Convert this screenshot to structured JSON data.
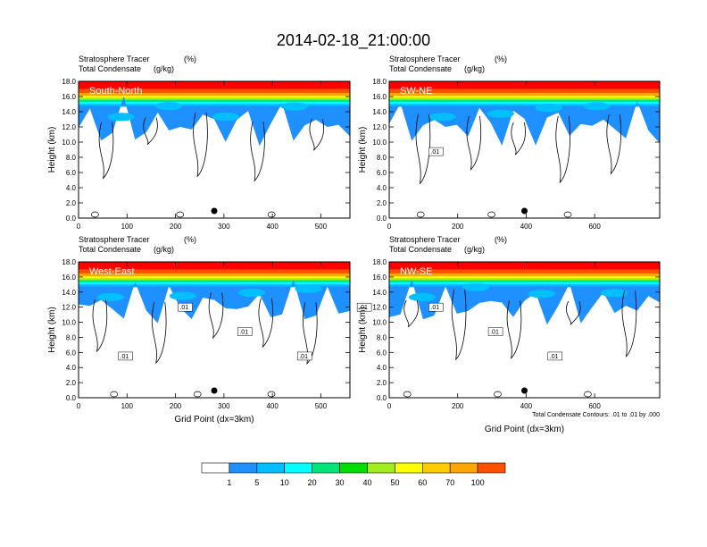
{
  "title": "2014-02-18_21:00:00",
  "chart_data": [
    {
      "type": "heatmap",
      "label_left_1": "Stratosphere Tracer",
      "label_right_1": "(%)",
      "label_left_2": "Total Condensate",
      "label_right_2": "(g/kg)",
      "section_label": "South-North",
      "ylabel": "Height (km)",
      "xlabel": "",
      "xlim": [
        0,
        560
      ],
      "ylim": [
        0,
        18
      ],
      "xticks": [
        "0",
        "100",
        "200",
        "300",
        "400",
        "500"
      ],
      "yticks": [
        "0.0",
        "2.0",
        "4.0",
        "6.0",
        "8.0",
        "10.0",
        "12.0",
        "14.0",
        "16.0",
        "18.0"
      ],
      "marker_x": 280,
      "contour_labels": []
    },
    {
      "type": "heatmap",
      "label_left_1": "Stratosphere Tracer",
      "label_right_1": "(%)",
      "label_left_2": "Total Condensate",
      "label_right_2": "(g/kg)",
      "section_label": "SW-NE",
      "ylabel": "Height (km)",
      "xlabel": "",
      "xlim": [
        0,
        790
      ],
      "ylim": [
        0,
        18
      ],
      "xticks": [
        "0",
        "200",
        "400",
        "600"
      ],
      "yticks": [
        "0.0",
        "2.0",
        "4.0",
        "6.0",
        "8.0",
        "10.0",
        "12.0",
        "14.0",
        "16.0",
        "18.0"
      ],
      "marker_x": 395,
      "contour_labels": [
        ".01"
      ]
    },
    {
      "type": "heatmap",
      "label_left_1": "Stratosphere Tracer",
      "label_right_1": "(%)",
      "label_left_2": "Total Condensate",
      "label_right_2": "(g/kg)",
      "section_label": "West-East",
      "ylabel": "Height (km)",
      "xlabel": "Grid Point (dx=3km)",
      "xlim": [
        0,
        560
      ],
      "ylim": [
        0,
        18
      ],
      "xticks": [
        "0",
        "100",
        "200",
        "300",
        "400",
        "500"
      ],
      "yticks": [
        "0.0",
        "2.0",
        "4.0",
        "6.0",
        "8.0",
        "10.0",
        "12.0",
        "14.0",
        "16.0",
        "18.0"
      ],
      "marker_x": 280,
      "contour_labels": [
        ".01",
        ".01",
        ".01",
        ".01",
        ".01"
      ]
    },
    {
      "type": "heatmap",
      "label_left_1": "Stratosphere Tracer",
      "label_right_1": "(%)",
      "label_left_2": "Total Condensate",
      "label_right_2": "(g/kg)",
      "section_label": "NW-SE",
      "ylabel": "Height (km)",
      "xlabel": "Grid Point (dx=3km)",
      "xlim": [
        0,
        790
      ],
      "ylim": [
        0,
        18
      ],
      "xticks": [
        "0",
        "200",
        "400",
        "600"
      ],
      "yticks": [
        "0.0",
        "2.0",
        "4.0",
        "6.0",
        "8.0",
        "10.0",
        "12.0",
        "14.0",
        "16.0",
        "18.0"
      ],
      "marker_x": 395,
      "contour_labels": [
        ".01",
        ".01",
        ".01"
      ],
      "footnote": "Total Condensate Contours: .01 to .01 by .000"
    }
  ],
  "colorbar": {
    "labels": [
      "1",
      "5",
      "10",
      "20",
      "30",
      "40",
      "50",
      "60",
      "70",
      "100"
    ],
    "colors": [
      "#ffffff",
      "#1e90ff",
      "#00bfff",
      "#00ffff",
      "#00e57a",
      "#00dd00",
      "#a0ee20",
      "#ffff00",
      "#ffcc00",
      "#ffa500",
      "#ff5000",
      "#ff0000"
    ]
  }
}
